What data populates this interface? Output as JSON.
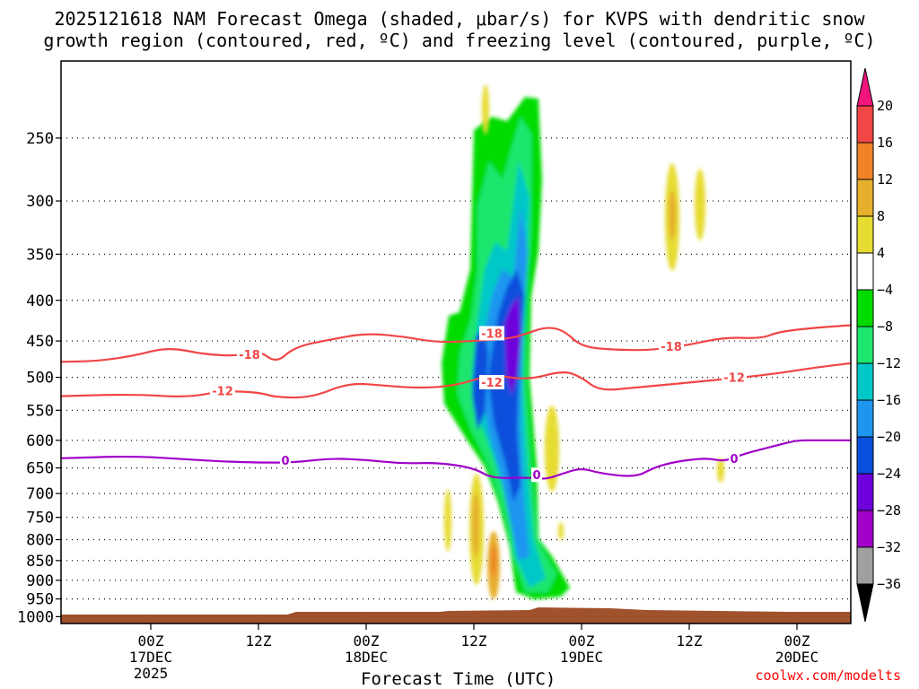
{
  "chart_data": {
    "type": "heatmap",
    "title_line1": "2025121618 NAM Forecast Omega (shaded, μbar/s) for KVPS with dendritic snow",
    "title_line2": "growth region (contoured, red, ºC) and freezing level (contoured, purple, ºC)",
    "xlabel": "Forecast Time (UTC)",
    "credit": "coolwx.com/modelts",
    "y_levels": [
      250,
      300,
      350,
      400,
      450,
      500,
      550,
      600,
      650,
      700,
      750,
      800,
      850,
      900,
      950,
      1000
    ],
    "y_range_hpa": [
      200,
      1020
    ],
    "x_range_hours": [
      -4,
      84
    ],
    "x_ticks": [
      {
        "hour": 6,
        "lines": [
          "00Z",
          "17DEC",
          "2025"
        ]
      },
      {
        "hour": 18,
        "lines": [
          "12Z"
        ]
      },
      {
        "hour": 30,
        "lines": [
          "00Z",
          "18DEC"
        ]
      },
      {
        "hour": 42,
        "lines": [
          "12Z"
        ]
      },
      {
        "hour": 54,
        "lines": [
          "00Z",
          "19DEC"
        ]
      },
      {
        "hour": 66,
        "lines": [
          "12Z"
        ]
      },
      {
        "hour": 78,
        "lines": [
          "00Z",
          "20DEC"
        ]
      }
    ],
    "colorbar": {
      "labels": [
        "20",
        "16",
        "12",
        "8",
        "4",
        "−4",
        "−8",
        "−12",
        "−16",
        "−20",
        "−24",
        "−28",
        "−32",
        "−36"
      ],
      "colors": [
        "#f0147d",
        "#f04646",
        "#f08228",
        "#e6af2d",
        "#e6dc32",
        "#ffffff",
        "#00dc00",
        "#1ee66e",
        "#00c8c8",
        "#1e96f0",
        "#0a50dc",
        "#6e00dc",
        "#a000c8",
        "#a0a0a0",
        "#000000"
      ]
    },
    "contours": [
      {
        "label": "-18",
        "color": "#f04646",
        "points": [
          [
            -4,
            478
          ],
          [
            0,
            477
          ],
          [
            4,
            470
          ],
          [
            8,
            458
          ],
          [
            12,
            468
          ],
          [
            16,
            470
          ],
          [
            18,
            462
          ],
          [
            20,
            480
          ],
          [
            22,
            458
          ],
          [
            26,
            448
          ],
          [
            30,
            440
          ],
          [
            34,
            444
          ],
          [
            38,
            452
          ],
          [
            42,
            450
          ],
          [
            46,
            447
          ],
          [
            48,
            440
          ],
          [
            50,
            432
          ],
          [
            52,
            436
          ],
          [
            54,
            458
          ],
          [
            58,
            462
          ],
          [
            62,
            462
          ],
          [
            66,
            455
          ],
          [
            70,
            445
          ],
          [
            74,
            447
          ],
          [
            76,
            438
          ],
          [
            80,
            433
          ],
          [
            84,
            430
          ]
        ],
        "label_at": [
          [
            17,
            468
          ],
          [
            44,
            440
          ],
          [
            64,
            457
          ]
        ]
      },
      {
        "label": "-12",
        "color": "#f04646",
        "points": [
          [
            -4,
            528
          ],
          [
            4,
            525
          ],
          [
            10,
            530
          ],
          [
            14,
            520
          ],
          [
            18,
            522
          ],
          [
            20,
            530
          ],
          [
            24,
            530
          ],
          [
            28,
            508
          ],
          [
            32,
            512
          ],
          [
            36,
            516
          ],
          [
            40,
            512
          ],
          [
            44,
            496
          ],
          [
            48,
            504
          ],
          [
            52,
            490
          ],
          [
            54,
            500
          ],
          [
            56,
            520
          ],
          [
            60,
            515
          ],
          [
            64,
            510
          ],
          [
            68,
            505
          ],
          [
            72,
            500
          ],
          [
            76,
            494
          ],
          [
            80,
            486
          ],
          [
            84,
            480
          ]
        ],
        "label_at": [
          [
            14,
            520
          ],
          [
            44,
            507
          ],
          [
            71,
            500
          ]
        ]
      },
      {
        "label": "0",
        "color": "#a000c8",
        "points": [
          [
            -4,
            632
          ],
          [
            4,
            628
          ],
          [
            10,
            634
          ],
          [
            14,
            638
          ],
          [
            18,
            640
          ],
          [
            22,
            640
          ],
          [
            26,
            632
          ],
          [
            30,
            635
          ],
          [
            34,
            642
          ],
          [
            38,
            640
          ],
          [
            42,
            650
          ],
          [
            44,
            670
          ],
          [
            48,
            668
          ],
          [
            50,
            672
          ],
          [
            52,
            660
          ],
          [
            54,
            650
          ],
          [
            56,
            660
          ],
          [
            60,
            668
          ],
          [
            62,
            650
          ],
          [
            64,
            640
          ],
          [
            66,
            635
          ],
          [
            68,
            632
          ],
          [
            70,
            638
          ],
          [
            72,
            624
          ],
          [
            76,
            608
          ],
          [
            78,
            600
          ],
          [
            80,
            600
          ],
          [
            84,
            600
          ]
        ],
        "label_at": [
          [
            21,
            636
          ],
          [
            49,
            663
          ],
          [
            71,
            632
          ]
        ]
      }
    ]
  }
}
